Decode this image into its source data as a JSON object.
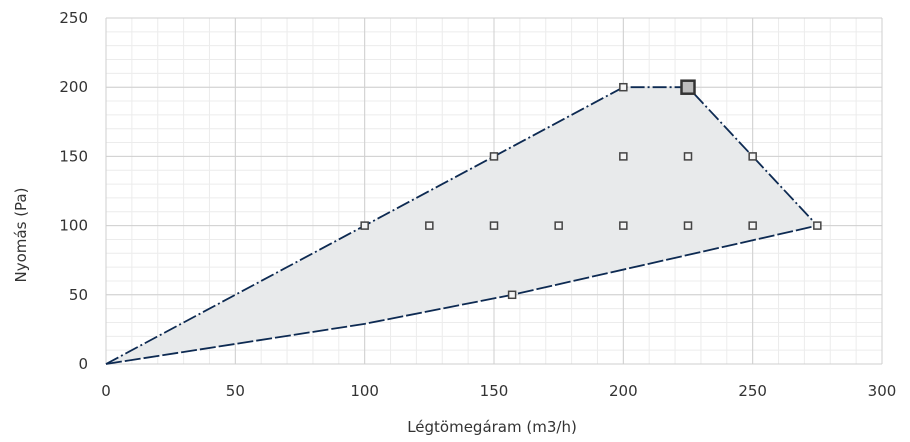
{
  "chart_data": {
    "type": "scatter",
    "title": "",
    "xlabel": "Légtömegáram (m3/h)",
    "ylabel": "Nyomás (Pa)",
    "xlim": [
      0,
      300
    ],
    "ylim": [
      0,
      250
    ],
    "x_ticks": [
      "0",
      "50",
      "100",
      "150",
      "200",
      "250",
      "300"
    ],
    "y_ticks": [
      "0",
      "50",
      "100",
      "150",
      "200",
      "250"
    ],
    "grid": true,
    "minor_grid": true,
    "envelope": {
      "upper_boundary": [
        [
          0,
          0
        ],
        [
          100,
          100
        ],
        [
          150,
          150
        ],
        [
          200,
          200
        ],
        [
          225,
          200
        ],
        [
          250,
          150
        ],
        [
          275,
          100
        ]
      ],
      "lower_boundary": [
        [
          0,
          0
        ],
        [
          100,
          29
        ],
        [
          157,
          50
        ],
        [
          275,
          100
        ]
      ],
      "fill_color": "#e8eaeb",
      "line_color": "#0d2a52"
    },
    "points": [
      [
        100,
        100
      ],
      [
        125,
        100
      ],
      [
        150,
        100
      ],
      [
        175,
        100
      ],
      [
        200,
        100
      ],
      [
        225,
        100
      ],
      [
        250,
        100
      ],
      [
        275,
        100
      ],
      [
        150,
        150
      ],
      [
        200,
        150
      ],
      [
        225,
        150
      ],
      [
        250,
        150
      ],
      [
        200,
        200
      ],
      [
        225,
        200
      ],
      [
        157,
        50
      ]
    ],
    "highlight_point": [
      225,
      200
    ],
    "marker_color": "#444444"
  }
}
